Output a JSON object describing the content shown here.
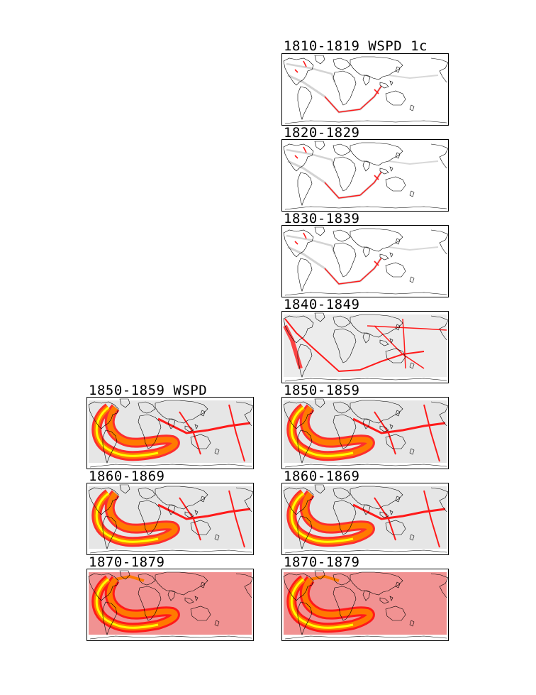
{
  "colors": {
    "background": "#ffffff",
    "coastline": "#000000",
    "no_data_gray": "#c8c8c8",
    "low_red": "#ff1a1a",
    "mid_orange": "#ff7a00",
    "high_yellow": "#ffff00"
  },
  "panels": [
    {
      "id": "r-1810",
      "title": "1810-1819 WSPD 1c",
      "column": "right",
      "density": "sparse"
    },
    {
      "id": "r-1820",
      "title": "1820-1829",
      "column": "right",
      "density": "sparse"
    },
    {
      "id": "r-1830",
      "title": "1830-1839",
      "column": "right",
      "density": "sparse"
    },
    {
      "id": "r-1840",
      "title": "1840-1849",
      "column": "right",
      "density": "moderate"
    },
    {
      "id": "l-1850",
      "title": "1850-1859 WSPD",
      "column": "left",
      "density": "dense"
    },
    {
      "id": "r-1850",
      "title": "1850-1859",
      "column": "right",
      "density": "dense"
    },
    {
      "id": "l-1860",
      "title": "1860-1869",
      "column": "left",
      "density": "dense"
    },
    {
      "id": "r-1860",
      "title": "1860-1869",
      "column": "right",
      "density": "dense"
    },
    {
      "id": "l-1870",
      "title": "1870-1879",
      "column": "left",
      "density": "very-dense"
    },
    {
      "id": "r-1870",
      "title": "1870-1879",
      "column": "right",
      "density": "very-dense"
    }
  ]
}
